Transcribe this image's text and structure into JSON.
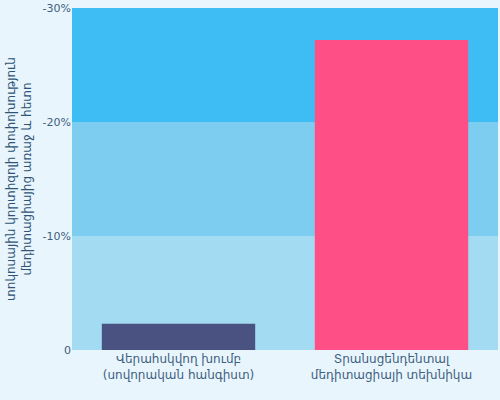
{
  "chart_data": {
    "type": "bar",
    "y_label": "տոկոսային կորտիզոլի փոփոխություն\nմեդիտացիայից առաջ և հետո",
    "categories": [
      "Վերահսկվող խումբ\n(սովորական հանգիստ)",
      "Տրանսցենդենտալ\nմեդիտացիայի տեխնիկա"
    ],
    "values": [
      -2.3,
      -27.2
    ],
    "colors": [
      "#4a5282",
      "#ff4f87"
    ],
    "ylim": [
      0,
      -30
    ],
    "yticks": [
      {
        "value": -30,
        "label": "-30%"
      },
      {
        "value": -20,
        "label": "-20%"
      },
      {
        "value": -10,
        "label": "-10%"
      },
      0
    ]
  }
}
